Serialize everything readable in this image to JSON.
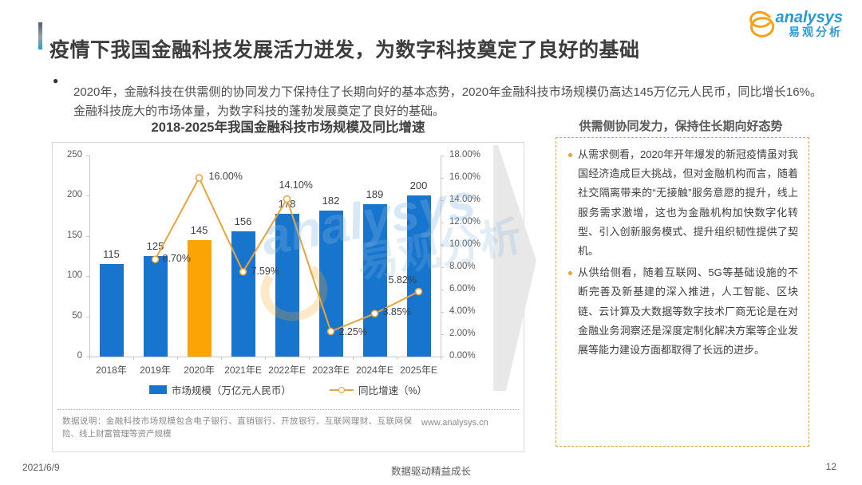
{
  "header": {
    "title": "疫情下我国金融科技发展活力迸发，为数字科技奠定了良好的基础",
    "logo": {
      "brand": "analysys",
      "brand_cn": "易观分析"
    }
  },
  "summary": {
    "bullet": "2020年，金融科技在供需侧的协同发力下保持住了长期向好的基本态势，2020年金融科技市场规模仍高达145万亿元人民币，同比增长16%。金融科技庞大的市场体量，为数字科技的蓬勃发展奠定了良好的基础。"
  },
  "chart": {
    "title": "2018-2025年我国金融科技市场规模及同比增速",
    "source_note": "数据说明：金融科技市场规模包含电子银行、直销银行、开放银行、互联网理财、互联网保险、线上财富管理等资产规模",
    "website": "www.analysys.cn"
  },
  "chart_data": {
    "type": "bar",
    "title": "2018-2025年我国金融科技市场规模及同比增速",
    "categories": [
      "2018年",
      "2019年",
      "2020年",
      "2021年E",
      "2022年E",
      "2023年E",
      "2024年E",
      "2025年E"
    ],
    "series": [
      {
        "name": "市场规模（万亿元人民币）",
        "type": "bar",
        "values": [
          115,
          125,
          145,
          156,
          178,
          182,
          189,
          200
        ],
        "color": "#1875ce",
        "highlight_index": 2,
        "highlight_color": "#fca306"
      },
      {
        "name": "同比增速（%）",
        "type": "line",
        "values": [
          null,
          8.7,
          16.0,
          7.59,
          14.1,
          2.25,
          3.85,
          5.82
        ],
        "labels": [
          null,
          "8.70%",
          "16.00%",
          "7.59%",
          "14.10%",
          "2.25%",
          "3.85%",
          "5.82%"
        ],
        "color": "#e8a33b"
      }
    ],
    "left_axis": {
      "min": 0,
      "max": 250,
      "step": 50,
      "ticks": [
        "0",
        "50",
        "100",
        "150",
        "200",
        "250"
      ]
    },
    "right_axis": {
      "min_pct": 0,
      "max_pct": 18,
      "ticks": [
        "0.00%",
        "2.00%",
        "4.00%",
        "6.00%",
        "8.00%",
        "10.00%",
        "12.00%",
        "14.00%",
        "16.00%",
        "18.00%"
      ]
    },
    "legend_position": "bottom",
    "grid": false
  },
  "panel": {
    "title": "供需侧协同发力，保持住长期向好态势",
    "bullets": [
      "从需求侧看，2020年开年爆发的新冠疫情虽对我国经济造成巨大挑战，但对金融机构而言，随着社交隔离带来的“无接触”服务意愿的提升，线上服务需求激增，这也为金融机构加快数字化转型、引入创新服务模式、提升组织韧性提供了契机。",
      "从供给侧看，随着互联网、5G等基础设施的不断完善及新基建的深入推进，人工智能、区块链、云计算及大数据等数字技术厂商无论是在对金融业务洞察还是深度定制化解决方案等企业发展等能力建设方面都取得了长远的进步。"
    ]
  },
  "watermark": {
    "brand": "analysys",
    "brand_cn": "易观分析"
  },
  "footer": {
    "date": "2021/6/9",
    "slogan": "数据驱动精益成长",
    "page": "12"
  }
}
